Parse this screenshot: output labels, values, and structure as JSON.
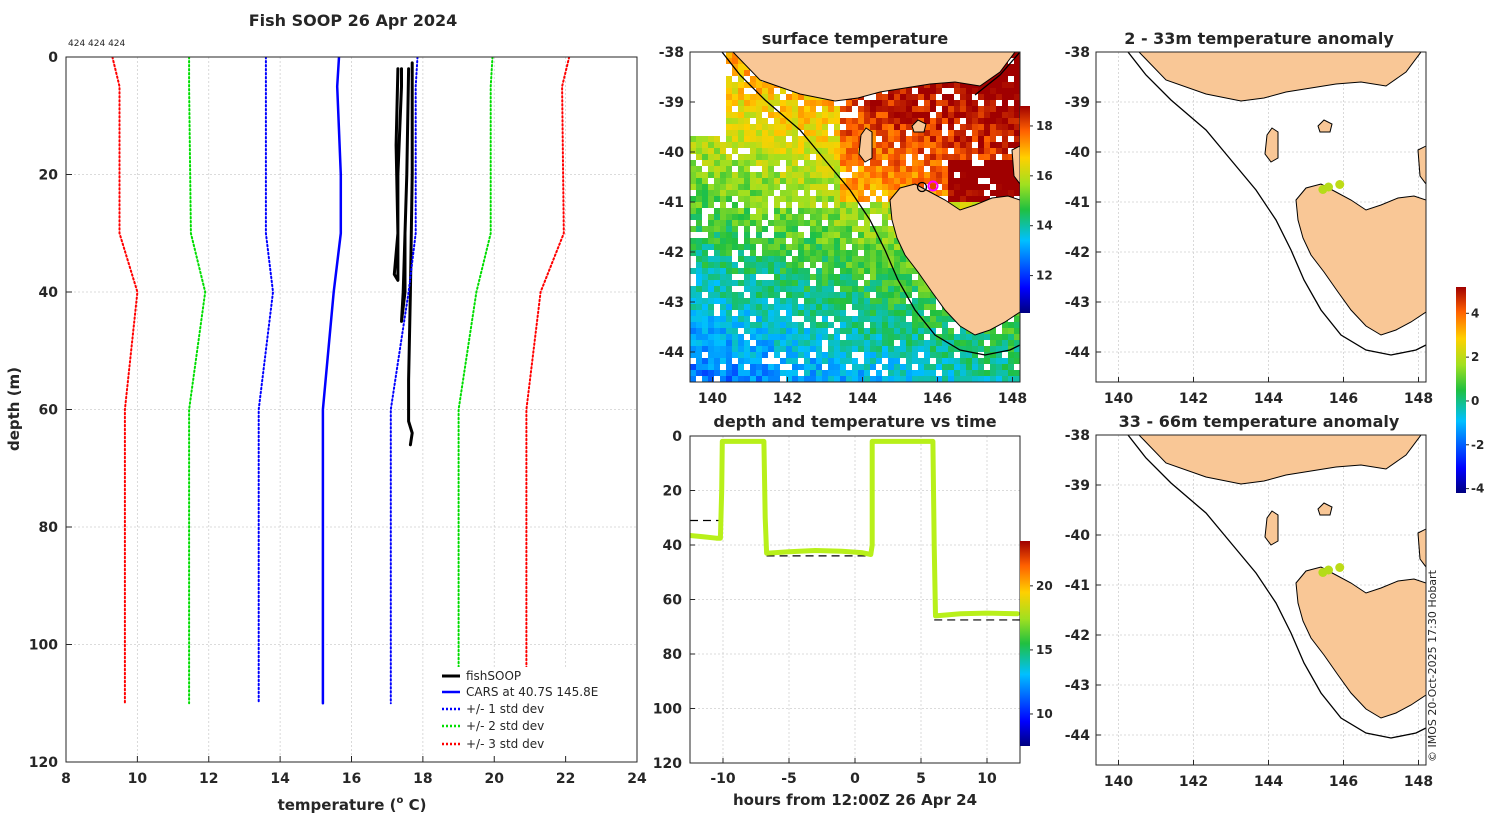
{
  "chart_data": [
    {
      "id": "profile",
      "type": "line",
      "title": "Fish SOOP 26 Apr 2024",
      "top_annotation": "424 424 424",
      "xlabel": "temperature (",
      "xlabel_sup": "o",
      "xlabel_end": " C)",
      "ylabel": "depth (m)",
      "xlim": [
        8,
        24
      ],
      "ylim": [
        0,
        120
      ],
      "y_reversed": true,
      "xticks": [
        8,
        10,
        12,
        14,
        16,
        18,
        20,
        22,
        24
      ],
      "yticks": [
        0,
        20,
        40,
        60,
        80,
        100,
        120
      ],
      "legend_position": "bottom-right",
      "series": [
        {
          "name": "fishSOOP",
          "color": "#000000",
          "style": "solid",
          "width": 3,
          "segments": [
            [
              [
                17.3,
                2
              ],
              [
                17.25,
                15
              ],
              [
                17.3,
                30
              ],
              [
                17.2,
                37
              ],
              [
                17.3,
                38
              ],
              [
                17.3,
                20
              ],
              [
                17.4,
                5
              ],
              [
                17.4,
                2
              ]
            ],
            [
              [
                17.6,
                2
              ],
              [
                17.55,
                20
              ],
              [
                17.5,
                30
              ],
              [
                17.45,
                40
              ],
              [
                17.4,
                45
              ],
              [
                17.5,
                40
              ],
              [
                17.5,
                30
              ]
            ],
            [
              [
                17.7,
                1
              ],
              [
                17.7,
                20
              ],
              [
                17.65,
                40
              ],
              [
                17.6,
                55
              ],
              [
                17.6,
                62
              ],
              [
                17.7,
                64
              ],
              [
                17.65,
                66
              ]
            ]
          ]
        },
        {
          "name": "CARS at 40.7S 145.8E",
          "color": "#0000ff",
          "style": "solid",
          "width": 2.5,
          "points": [
            [
              15.65,
              0
            ],
            [
              15.6,
              5
            ],
            [
              15.7,
              20
            ],
            [
              15.7,
              30
            ],
            [
              15.5,
              40
            ],
            [
              15.2,
              60
            ],
            [
              15.2,
              110
            ]
          ]
        },
        {
          "name": "+/- 1 std dev",
          "color": "#0000ff",
          "style": "dotted",
          "width": 2,
          "points": [
            [
              13.6,
              0
            ],
            [
              13.6,
              5
            ],
            [
              13.6,
              30
            ],
            [
              13.8,
              40
            ],
            [
              13.4,
              60
            ],
            [
              13.4,
              110
            ]
          ]
        },
        {
          "name": "+/- 1 std dev",
          "color": "#0000ff",
          "style": "dotted",
          "width": 2,
          "legend": false,
          "points": [
            [
              17.85,
              0
            ],
            [
              17.8,
              5
            ],
            [
              17.8,
              30
            ],
            [
              17.6,
              40
            ],
            [
              17.1,
              60
            ],
            [
              17.1,
              110
            ]
          ]
        },
        {
          "name": "+/- 2 std dev",
          "color": "#00dd00",
          "style": "dotted",
          "width": 2,
          "points": [
            [
              11.45,
              0
            ],
            [
              11.45,
              5
            ],
            [
              11.5,
              30
            ],
            [
              11.9,
              40
            ],
            [
              11.45,
              60
            ],
            [
              11.45,
              110
            ]
          ]
        },
        {
          "name": "+/- 2 std dev",
          "color": "#00dd00",
          "style": "dotted",
          "width": 2,
          "legend": false,
          "points": [
            [
              19.95,
              0
            ],
            [
              19.9,
              5
            ],
            [
              19.9,
              30
            ],
            [
              19.5,
              40
            ],
            [
              19.0,
              60
            ],
            [
              19.0,
              110
            ]
          ]
        },
        {
          "name": "+/- 3 std dev",
          "color": "#ff0000",
          "style": "dotted",
          "width": 2,
          "points": [
            [
              9.3,
              0
            ],
            [
              9.5,
              5
            ],
            [
              9.5,
              30
            ],
            [
              10.0,
              40
            ],
            [
              9.65,
              60
            ],
            [
              9.65,
              110
            ]
          ]
        },
        {
          "name": "+/- 3 std dev",
          "color": "#ff0000",
          "style": "dotted",
          "width": 2,
          "legend": false,
          "points": [
            [
              22.1,
              0
            ],
            [
              21.9,
              5
            ],
            [
              21.95,
              30
            ],
            [
              21.3,
              40
            ],
            [
              20.9,
              60
            ],
            [
              20.9,
              110
            ]
          ]
        }
      ]
    },
    {
      "id": "sst_map",
      "type": "heatmap",
      "title": "surface temperature",
      "xlim": [
        139.4,
        148.2
      ],
      "ylim": [
        -44.6,
        -38
      ],
      "xticks": [
        140,
        142,
        144,
        146,
        148
      ],
      "yticks": [
        -38,
        -39,
        -40,
        -41,
        -42,
        -43,
        -44
      ],
      "colorbar": {
        "min": 10.5,
        "max": 18.8,
        "ticks": [
          12,
          14,
          16,
          18
        ]
      },
      "markers": [
        {
          "lon": 145.5,
          "lat": -40.7,
          "shape": "circle",
          "color": "#000000"
        },
        {
          "lon": 145.85,
          "lat": -40.65,
          "shape": "circle",
          "color": "#ff00ff"
        }
      ]
    },
    {
      "id": "depth_time",
      "type": "scatter",
      "title": "depth and temperature vs time",
      "xlabel": "hours from 12:00Z 26 Apr 24",
      "xlim": [
        -12.5,
        12.5
      ],
      "ylim": [
        0,
        120
      ],
      "y_reversed": true,
      "xticks": [
        -10,
        -5,
        0,
        5,
        10
      ],
      "yticks": [
        0,
        20,
        40,
        60,
        80,
        100,
        120
      ],
      "colorbar": {
        "min": 7.5,
        "max": 23.5,
        "ticks": [
          10,
          15,
          20
        ]
      },
      "track_color": "#b8f01a",
      "track": [
        [
          -12.5,
          36.5
        ],
        [
          -11.5,
          37
        ],
        [
          -10.5,
          37.5
        ],
        [
          -10.2,
          37.5
        ],
        [
          -10.1,
          20
        ],
        [
          -10.05,
          2
        ],
        [
          -6.9,
          2
        ],
        [
          -6.8,
          30
        ],
        [
          -6.7,
          43
        ],
        [
          -5,
          42.5
        ],
        [
          -3,
          42
        ],
        [
          -1,
          42.3
        ],
        [
          0.5,
          42.8
        ],
        [
          1.2,
          43.5
        ],
        [
          1.3,
          40
        ],
        [
          1.3,
          2
        ],
        [
          5.9,
          2
        ],
        [
          6.0,
          40
        ],
        [
          6.1,
          66
        ],
        [
          8,
          65.2
        ],
        [
          10,
          65
        ],
        [
          12.3,
          65.2
        ]
      ],
      "bottom_depth_dashes": [
        {
          "x0": -12.5,
          "x1": -10.3,
          "depth": 31
        },
        {
          "x0": -6.7,
          "x1": 1.3,
          "depth": 44
        },
        {
          "x0": 6.0,
          "x1": 12.5,
          "depth": 67.5
        }
      ]
    },
    {
      "id": "anom_shallow",
      "type": "scatter",
      "title": "2 - 33m temperature anomaly",
      "xlim": [
        139.4,
        148.2
      ],
      "ylim": [
        -44.6,
        -38
      ],
      "xticks": [
        140,
        142,
        144,
        146,
        148
      ],
      "yticks": [
        -38,
        -39,
        -40,
        -41,
        -42,
        -43,
        -44
      ],
      "points": [
        {
          "lon": 145.45,
          "lat": -40.75,
          "value": 1.9
        },
        {
          "lon": 145.6,
          "lat": -40.7,
          "value": 1.9
        },
        {
          "lon": 145.9,
          "lat": -40.65,
          "value": 2.0
        }
      ]
    },
    {
      "id": "anom_deep",
      "type": "scatter",
      "title": "33 - 66m temperature anomaly",
      "xlim": [
        139.4,
        148.2
      ],
      "ylim": [
        -44.6,
        -38
      ],
      "xticks": [
        140,
        142,
        144,
        146,
        148
      ],
      "yticks": [
        -38,
        -39,
        -40,
        -41,
        -42,
        -43,
        -44
      ],
      "points": [
        {
          "lon": 145.45,
          "lat": -40.75,
          "value": 1.9
        },
        {
          "lon": 145.6,
          "lat": -40.7,
          "value": 1.9
        },
        {
          "lon": 145.9,
          "lat": -40.65,
          "value": 2.0
        }
      ],
      "colorbar": {
        "min": -4.2,
        "max": 5.2,
        "ticks": [
          -4,
          -2,
          0,
          2,
          4
        ]
      }
    }
  ],
  "credit": "© IMOS 20-Oct-2025 17:30 Hobart",
  "colors": {
    "land": "#f9c796",
    "axis_text": "#262626"
  }
}
